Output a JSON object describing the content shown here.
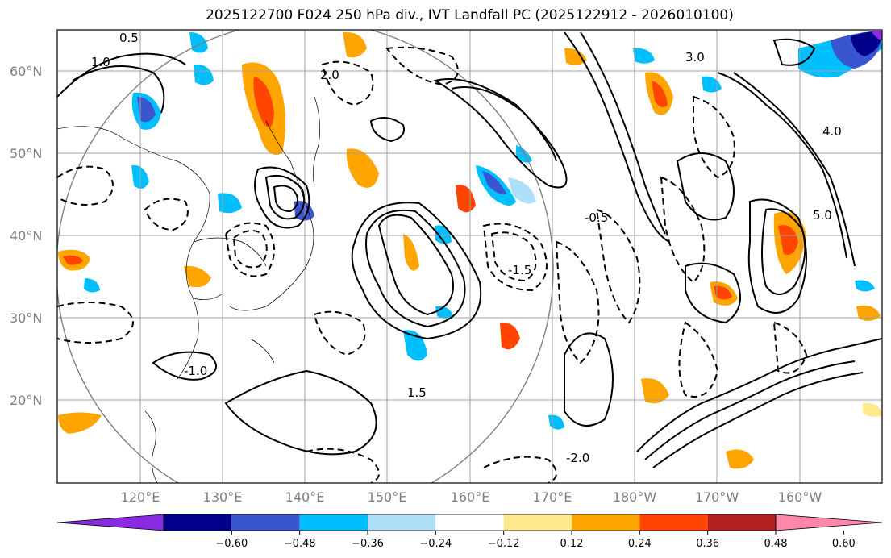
{
  "title": "2025122700 F024 250 hPa div., IVT Landfall PC (2025122912 - 2026010100)",
  "lat_labels": [
    "60°N",
    "50°N",
    "40°N",
    "30°N",
    "20°N"
  ],
  "lon_labels": [
    "120°E",
    "130°E",
    "140°E",
    "150°E",
    "160°E",
    "170°E",
    "180°W",
    "170°W",
    "160°W"
  ],
  "colorbar": {
    "ticks": [
      "−0.60",
      "−0.48",
      "−0.36",
      "−0.24",
      "−0.12",
      "0.12",
      "0.24",
      "0.36",
      "0.48",
      "0.60"
    ],
    "colors": [
      "#8a2be2",
      "#00008b",
      "#3a55d0",
      "#00bfff",
      "#aee0fa",
      "#ffffff",
      "#ffe98c",
      "#ffa500",
      "#ff4500",
      "#b22222",
      "#ff88aa"
    ]
  },
  "contour_labels": [
    "0.5",
    "1.0",
    "1.5",
    "2.0",
    "3.0",
    "4.0",
    "5.0",
    "-0.5",
    "-1.0",
    "-1.5",
    "-2.0"
  ],
  "colors": {
    "land_outline": "#000000",
    "grid": "#a0a0a0",
    "circle": "#808080"
  }
}
